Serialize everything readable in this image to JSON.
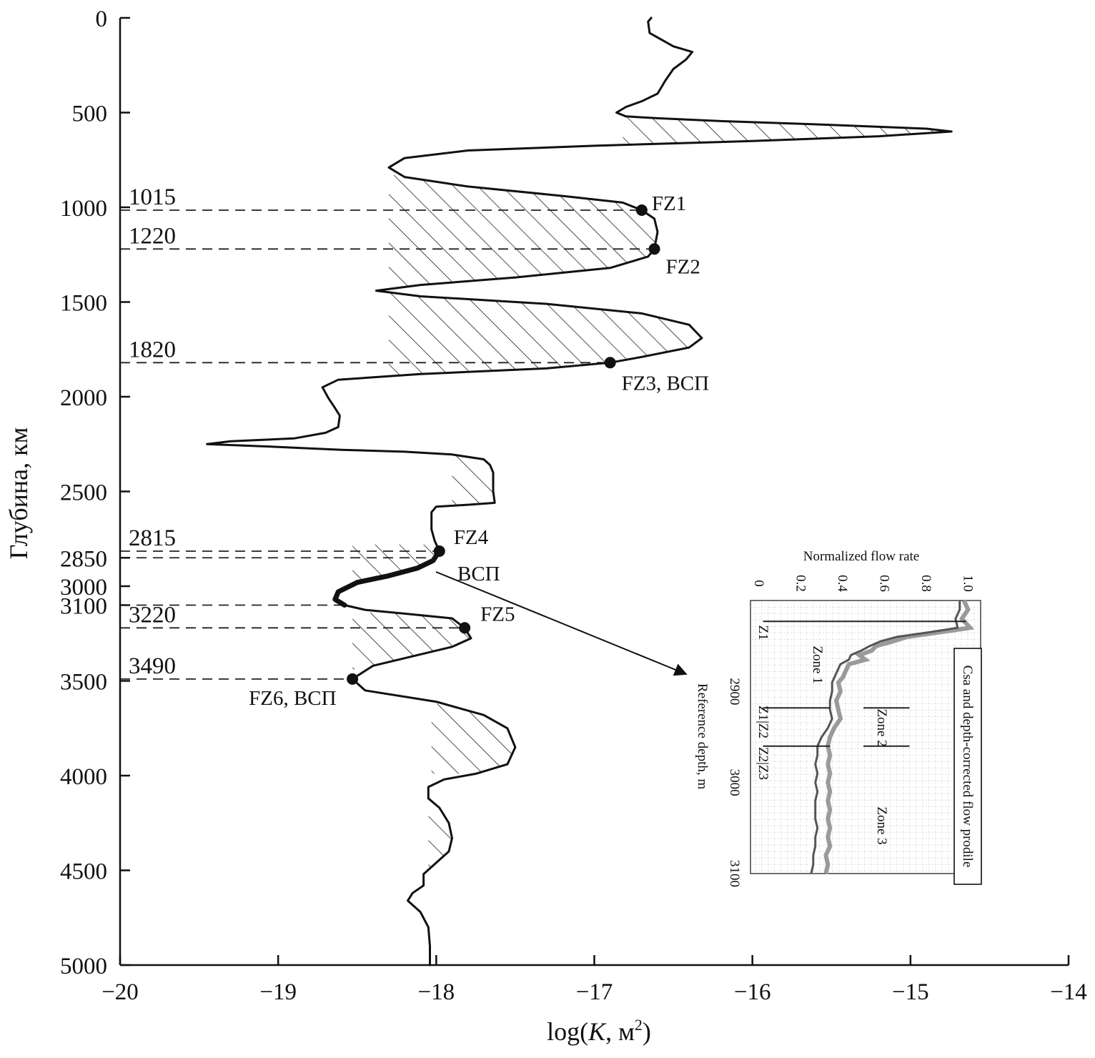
{
  "chart_data": [
    {
      "type": "line",
      "title": "",
      "xlabel": "log(K, м²)",
      "xlabel_parts": {
        "prefix": "log(",
        "var": "K",
        "unit": ", м",
        "sup": "2",
        "suffix": ")"
      },
      "ylabel": "Глубина, км",
      "xlim": [
        -20,
        -14
      ],
      "ylim": [
        5000,
        0
      ],
      "y_inverted": true,
      "grid": false,
      "x_ticks": [
        -20,
        -19,
        -18,
        -17,
        -16,
        -15,
        -14
      ],
      "x_tick_labels": [
        "−20",
        "−19",
        "−18",
        "−17",
        "−16",
        "−15",
        "−14"
      ],
      "y_ticks": [
        {
          "label": "0",
          "value": 0
        },
        {
          "label": "500",
          "value": 500
        },
        {
          "label": "1000",
          "value": 1000
        },
        {
          "label": "1500",
          "value": 1500
        },
        {
          "label": "2000",
          "value": 2000
        },
        {
          "label": "2500",
          "value": 2500
        },
        {
          "label": "2850",
          "value": 2850
        },
        {
          "label": "3000",
          "value": 3000
        },
        {
          "label": "3100",
          "value": 3100
        },
        {
          "label": "3500",
          "value": 3500
        },
        {
          "label": "4000",
          "value": 4000
        },
        {
          "label": "4500",
          "value": 4500
        },
        {
          "label": "5000",
          "value": 5000
        }
      ],
      "series": [
        {
          "style": "solid",
          "points": [
            [
              -16.64,
              0
            ],
            [
              -16.66,
              20
            ],
            [
              -16.65,
              80
            ],
            [
              -16.5,
              150
            ],
            [
              -16.38,
              180
            ],
            [
              -16.42,
              220
            ],
            [
              -16.5,
              270
            ],
            [
              -16.55,
              330
            ],
            [
              -16.6,
              400
            ],
            [
              -16.7,
              440
            ],
            [
              -16.8,
              470
            ],
            [
              -16.86,
              500
            ],
            [
              -16.8,
              520
            ],
            [
              -16.6,
              530
            ],
            [
              -16.2,
              545
            ],
            [
              -15.5,
              565
            ],
            [
              -14.9,
              585
            ],
            [
              -14.74,
              600
            ],
            [
              -15.2,
              625
            ],
            [
              -16.0,
              650
            ],
            [
              -17.0,
              675
            ],
            [
              -17.8,
              700
            ],
            [
              -18.2,
              740
            ],
            [
              -18.3,
              790
            ],
            [
              -18.2,
              840
            ],
            [
              -17.8,
              890
            ],
            [
              -17.2,
              940
            ],
            [
              -16.82,
              975
            ],
            [
              -16.7,
              1015
            ],
            [
              -16.62,
              1060
            ],
            [
              -16.6,
              1130
            ],
            [
              -16.62,
              1220
            ],
            [
              -16.66,
              1260
            ],
            [
              -16.9,
              1320
            ],
            [
              -17.5,
              1370
            ],
            [
              -18.1,
              1410
            ],
            [
              -18.38,
              1440
            ],
            [
              -18.1,
              1470
            ],
            [
              -17.3,
              1510
            ],
            [
              -16.7,
              1560
            ],
            [
              -16.4,
              1620
            ],
            [
              -16.32,
              1690
            ],
            [
              -16.4,
              1740
            ],
            [
              -16.7,
              1790
            ],
            [
              -16.9,
              1820
            ],
            [
              -17.3,
              1850
            ],
            [
              -18.1,
              1880
            ],
            [
              -18.62,
              1910
            ],
            [
              -18.72,
              1950
            ],
            [
              -18.68,
              2010
            ],
            [
              -18.64,
              2060
            ],
            [
              -18.61,
              2100
            ],
            [
              -18.62,
              2160
            ],
            [
              -18.7,
              2190
            ],
            [
              -18.9,
              2220
            ],
            [
              -19.3,
              2235
            ],
            [
              -19.45,
              2250
            ],
            [
              -19.0,
              2265
            ],
            [
              -18.6,
              2280
            ],
            [
              -18.2,
              2290
            ],
            [
              -17.9,
              2305
            ],
            [
              -17.7,
              2330
            ],
            [
              -17.66,
              2360
            ],
            [
              -17.64,
              2400
            ],
            [
              -17.64,
              2500
            ],
            [
              -17.63,
              2560
            ],
            [
              -17.8,
              2570
            ],
            [
              -18.0,
              2580
            ],
            [
              -18.03,
              2610
            ],
            [
              -18.03,
              2700
            ],
            [
              -18.01,
              2760
            ],
            [
              -17.98,
              2815
            ]
          ]
        },
        {
          "style": "bold",
          "points": [
            [
              -17.98,
              2815
            ],
            [
              -18.02,
              2865
            ],
            [
              -18.12,
              2905
            ],
            [
              -18.3,
              2945
            ],
            [
              -18.5,
              2980
            ],
            [
              -18.62,
              3030
            ],
            [
              -18.64,
              3070
            ],
            [
              -18.58,
              3100
            ]
          ]
        },
        {
          "style": "solid",
          "points": [
            [
              -18.58,
              3100
            ],
            [
              -18.45,
              3125
            ],
            [
              -18.2,
              3145
            ],
            [
              -17.9,
              3170
            ],
            [
              -17.82,
              3220
            ],
            [
              -17.78,
              3275
            ],
            [
              -17.9,
              3320
            ],
            [
              -18.15,
              3370
            ],
            [
              -18.4,
              3420
            ],
            [
              -18.53,
              3490
            ],
            [
              -18.45,
              3550
            ],
            [
              -18.0,
              3610
            ],
            [
              -17.7,
              3680
            ],
            [
              -17.55,
              3750
            ],
            [
              -17.5,
              3850
            ],
            [
              -17.55,
              3940
            ],
            [
              -17.75,
              3990
            ],
            [
              -17.95,
              4020
            ],
            [
              -18.05,
              4060
            ],
            [
              -18.05,
              4120
            ],
            [
              -17.98,
              4170
            ],
            [
              -17.92,
              4250
            ],
            [
              -17.9,
              4330
            ],
            [
              -17.92,
              4400
            ],
            [
              -18.0,
              4460
            ],
            [
              -18.08,
              4520
            ],
            [
              -18.08,
              4580
            ],
            [
              -18.15,
              4620
            ],
            [
              -18.18,
              4660
            ],
            [
              -18.1,
              4720
            ],
            [
              -18.05,
              4800
            ],
            [
              -18.04,
              4900
            ],
            [
              -18.04,
              5000
            ]
          ]
        }
      ],
      "hatched_zones": [
        {
          "x_left": -16.82,
          "y_top": 500,
          "y_bottom": 680
        },
        {
          "x_left": -18.3,
          "y_top": 830,
          "y_bottom": 1440
        },
        {
          "x_left": -18.3,
          "y_top": 1440,
          "y_bottom": 1900
        },
        {
          "x_left": -17.9,
          "y_top": 2305,
          "y_bottom": 2570
        },
        {
          "x_left": -18.53,
          "y_top": 2780,
          "y_bottom": 3070
        },
        {
          "x_left": -18.53,
          "y_top": 3140,
          "y_bottom": 3440
        },
        {
          "x_left": -18.03,
          "y_top": 3620,
          "y_bottom": 3990
        },
        {
          "x_left": -18.05,
          "y_top": 4080,
          "y_bottom": 4530
        }
      ],
      "markers": [
        {
          "label": "FZ1",
          "x": -16.7,
          "y": 1015
        },
        {
          "label": "FZ2",
          "x": -16.62,
          "y": 1220
        },
        {
          "label": "FZ3, ВСП",
          "x": -16.9,
          "y": 1820
        },
        {
          "label": "FZ4",
          "x": -17.98,
          "y": 2815
        },
        {
          "label": "ВСП",
          "x": null,
          "y": null
        },
        {
          "label": "FZ5",
          "x": -17.82,
          "y": 3220
        },
        {
          "label": "FZ6, ВСП",
          "x": -18.53,
          "y": 3490
        }
      ],
      "depth_lines": [
        {
          "label": "1015",
          "value": 1015
        },
        {
          "label": "1220",
          "value": 1220
        },
        {
          "label": "1820",
          "value": 1820
        },
        {
          "label": "2815",
          "value": 2815
        },
        {
          "label": "",
          "value": 2850
        },
        {
          "label": "",
          "value": 3100
        },
        {
          "label": "3220",
          "value": 3220
        },
        {
          "label": "3490",
          "value": 3490
        }
      ]
    },
    {
      "type": "line",
      "title": "Normalized flow rate",
      "xlabel": "Reference depth, m",
      "ylabel": "Normalized flow rate",
      "rotated": true,
      "depth_range": [
        2800,
        3100
      ],
      "rate_range": [
        0,
        1.1
      ],
      "grid": true,
      "rate_ticks": [
        "0",
        "0.2",
        "0.4",
        "0.6",
        "0.8",
        "1.0"
      ],
      "depth_ticks": [
        "2900",
        "3000",
        "3100"
      ],
      "zone_labels": [
        "Z1",
        "Zone 1",
        "Z1|Z2",
        "Zone 2",
        "Z2|Z3",
        "Zone 3"
      ],
      "legend": "Csa and depth-corrected flow prodile",
      "zone_boundaries": [
        {
          "depth": 2823,
          "rate_from": 0.06,
          "rate_to": 1.03
        },
        {
          "depth": 2918,
          "rate_from": 0.06,
          "rate_to": 0.38
        },
        {
          "depth": 2918,
          "rate_from": 0.54,
          "rate_to": 0.76
        },
        {
          "depth": 2960,
          "rate_from": 0.06,
          "rate_to": 0.38
        },
        {
          "depth": 2960,
          "rate_from": 0.54,
          "rate_to": 0.76
        }
      ],
      "series": [
        {
          "color": "#9a9a9a",
          "points": [
            [
              2800,
              1.02
            ],
            [
              2810,
              1.04
            ],
            [
              2820,
              1.01
            ],
            [
              2830,
              1.05
            ],
            [
              2835,
              0.9
            ],
            [
              2840,
              0.75
            ],
            [
              2845,
              0.68
            ],
            [
              2850,
              0.6
            ],
            [
              2855,
              0.58
            ],
            [
              2860,
              0.52
            ],
            [
              2865,
              0.55
            ],
            [
              2870,
              0.47
            ],
            [
              2875,
              0.46
            ],
            [
              2880,
              0.45
            ],
            [
              2885,
              0.44
            ],
            [
              2890,
              0.42
            ],
            [
              2900,
              0.43
            ],
            [
              2910,
              0.41
            ],
            [
              2920,
              0.42
            ],
            [
              2930,
              0.43
            ],
            [
              2940,
              0.4
            ],
            [
              2950,
              0.38
            ],
            [
              2960,
              0.37
            ],
            [
              2970,
              0.38
            ],
            [
              2980,
              0.37
            ],
            [
              2990,
              0.38
            ],
            [
              3000,
              0.37
            ],
            [
              3010,
              0.38
            ],
            [
              3020,
              0.37
            ],
            [
              3030,
              0.38
            ],
            [
              3040,
              0.37
            ],
            [
              3050,
              0.38
            ],
            [
              3060,
              0.37
            ],
            [
              3070,
              0.38
            ],
            [
              3080,
              0.36
            ],
            [
              3090,
              0.37
            ],
            [
              3100,
              0.36
            ]
          ]
        },
        {
          "color": "#555555",
          "points": [
            [
              2800,
              1.0
            ],
            [
              2810,
              1.0
            ],
            [
              2820,
              0.98
            ],
            [
              2830,
              0.99
            ],
            [
              2835,
              0.85
            ],
            [
              2840,
              0.7
            ],
            [
              2845,
              0.62
            ],
            [
              2850,
              0.57
            ],
            [
              2855,
              0.53
            ],
            [
              2860,
              0.48
            ],
            [
              2865,
              0.47
            ],
            [
              2870,
              0.43
            ],
            [
              2875,
              0.42
            ],
            [
              2880,
              0.41
            ],
            [
              2885,
              0.4
            ],
            [
              2890,
              0.39
            ],
            [
              2900,
              0.39
            ],
            [
              2910,
              0.38
            ],
            [
              2920,
              0.38
            ],
            [
              2930,
              0.39
            ],
            [
              2940,
              0.37
            ],
            [
              2950,
              0.34
            ],
            [
              2960,
              0.32
            ],
            [
              2970,
              0.32
            ],
            [
              2980,
              0.31
            ],
            [
              2990,
              0.32
            ],
            [
              3000,
              0.31
            ],
            [
              3010,
              0.32
            ],
            [
              3020,
              0.31
            ],
            [
              3030,
              0.31
            ],
            [
              3040,
              0.31
            ],
            [
              3050,
              0.32
            ],
            [
              3060,
              0.31
            ],
            [
              3070,
              0.31
            ],
            [
              3080,
              0.3
            ],
            [
              3090,
              0.3
            ],
            [
              3100,
              0.29
            ]
          ]
        }
      ]
    }
  ]
}
